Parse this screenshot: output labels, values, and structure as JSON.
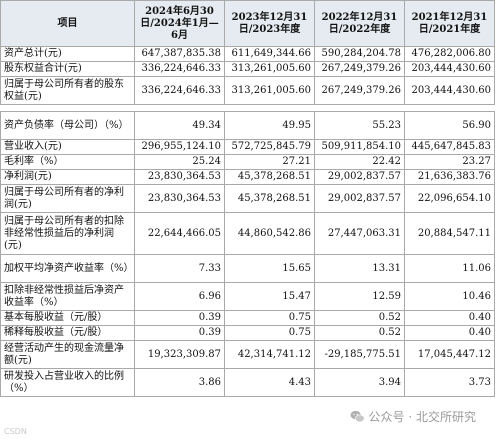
{
  "headers": [
    "项目",
    "2024年6月30日/2024年1月—6月",
    "2023年12月31日/2023年度",
    "2022年12月31日/2022年度",
    "2021年12月31日/2021年度"
  ],
  "group1": [
    {
      "label": "资产总计(元)",
      "values": [
        "647,387,835.38",
        "611,649,344.66",
        "590,284,204.78",
        "476,282,006.80"
      ]
    },
    {
      "label": "股东权益合计(元)",
      "values": [
        "336,224,646.33",
        "313,261,005.60",
        "267,249,379.26",
        "203,444,430.60"
      ]
    },
    {
      "label": "归属于母公司所有者的股东权益(元)",
      "values": [
        "336,224,646.33",
        "313,261,005.60",
        "267,249,379.26",
        "203,444,430.60"
      ]
    }
  ],
  "group2": [
    {
      "label": "资产负债率（母公司）（%）",
      "values": [
        "49.34",
        "49.95",
        "55.23",
        "56.90"
      ]
    },
    {
      "label": "营业收入(元)",
      "values": [
        "296,955,124.10",
        "572,725,845.79",
        "509,911,854.10",
        "445,647,845.83"
      ]
    },
    {
      "label": "毛利率（%）",
      "values": [
        "25.24",
        "27.21",
        "22.42",
        "23.27"
      ]
    },
    {
      "label": "净利润(元)",
      "values": [
        "23,830,364.53",
        "45,378,268.51",
        "29,002,837.57",
        "21,636,383.76"
      ]
    },
    {
      "label": "归属于母公司所有者的净利润(元)",
      "values": [
        "23,830,364.53",
        "45,378,268.51",
        "29,002,837.57",
        "22,096,654.10"
      ]
    },
    {
      "label": "归属于母公司所有者的扣除非经常性损益后的净利润(元)",
      "values": [
        "22,644,466.05",
        "44,860,542.86",
        "27,447,063.31",
        "20,884,547.11"
      ]
    },
    {
      "label": "加权平均净资产收益率（%）",
      "values": [
        "7.33",
        "15.65",
        "13.31",
        "11.06"
      ]
    },
    {
      "label": "扣除非经常性损益后净资产收益率（%）",
      "values": [
        "6.96",
        "15.47",
        "12.59",
        "10.46"
      ]
    },
    {
      "label": "基本每股收益（元/股）",
      "values": [
        "0.39",
        "0.75",
        "0.52",
        "0.40"
      ]
    },
    {
      "label": "稀释每股收益（元/股）",
      "values": [
        "0.39",
        "0.75",
        "0.52",
        "0.40"
      ]
    },
    {
      "label": "经营活动产生的现金流量净额(元)",
      "values": [
        "19,323,309.87",
        "42,314,741.12",
        "-29,185,775.51",
        "17,045,447.12"
      ]
    },
    {
      "label": "研发投入占营业收入的比例（%）",
      "values": [
        "3.86",
        "4.43",
        "3.94",
        "3.73"
      ]
    }
  ],
  "watermark": {
    "icon": "wechat-icon",
    "text": "公众号 · 北交所研究"
  },
  "corner_mark": "CSDN"
}
